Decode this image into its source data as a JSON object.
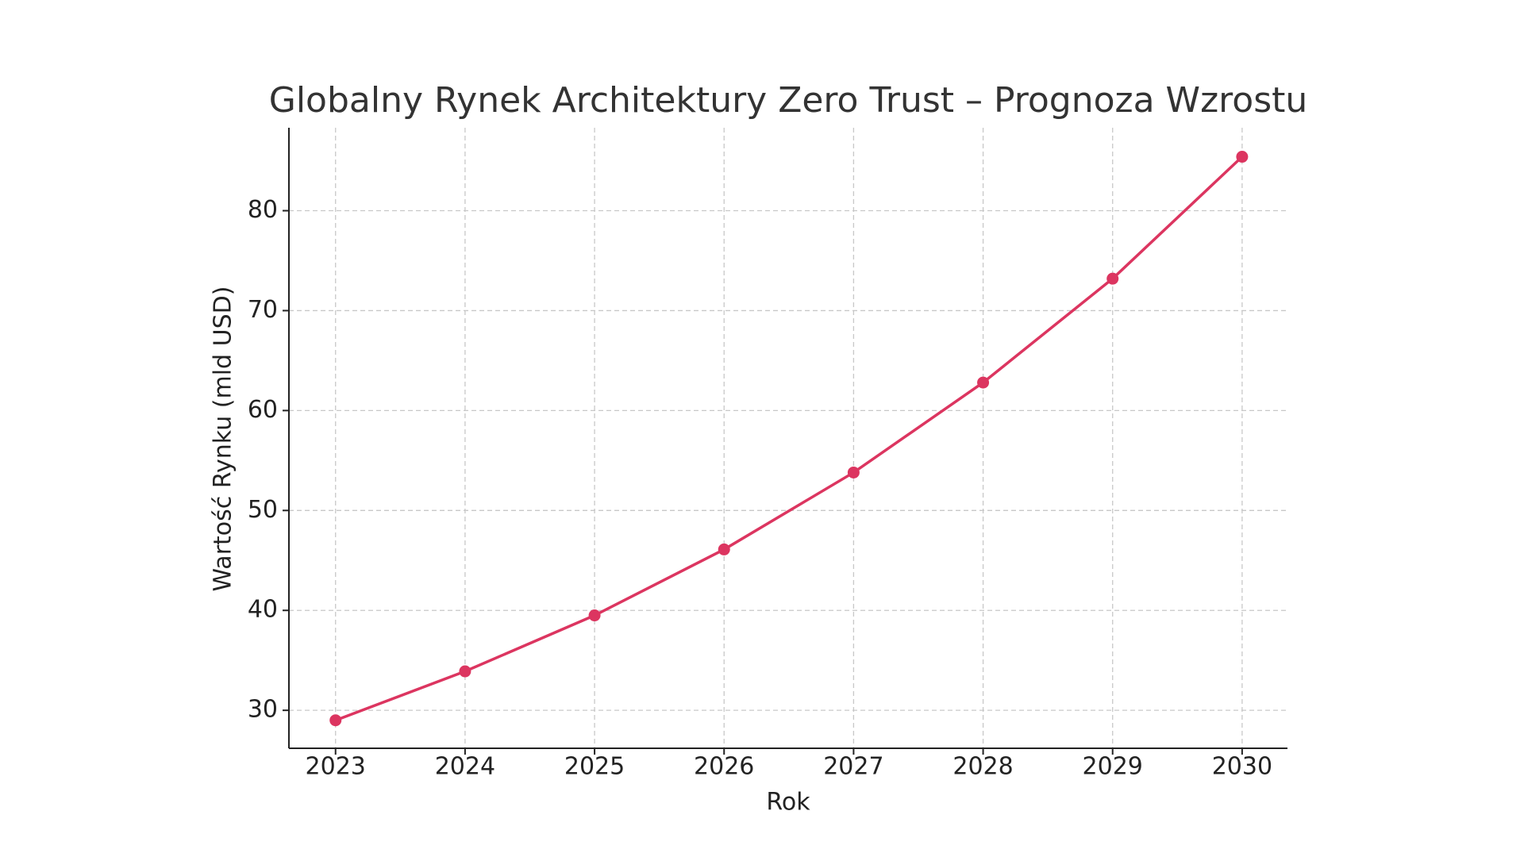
{
  "chart_data": {
    "type": "line",
    "title": "Globalny Rynek Architektury Zero Trust – Prognoza Wzrostu",
    "x_label": "Rok",
    "y_label": "Wartość Rynku (mld USD)",
    "x": [
      2023,
      2024,
      2025,
      2026,
      2027,
      2028,
      2029,
      2030
    ],
    "series": [
      {
        "name": "Wartość Rynku",
        "color": "#dc3560",
        "values": [
          29.0,
          33.9,
          39.5,
          46.1,
          53.8,
          62.8,
          73.2,
          85.4
        ]
      }
    ],
    "xlim": [
      2022.64,
      2030.35
    ],
    "xticks": [
      2023,
      2024,
      2025,
      2026,
      2027,
      2028,
      2029,
      2030
    ],
    "ylim": [
      26.2,
      88.3
    ],
    "yticks": [
      30,
      40,
      50,
      60,
      70,
      80
    ],
    "grid": true
  }
}
